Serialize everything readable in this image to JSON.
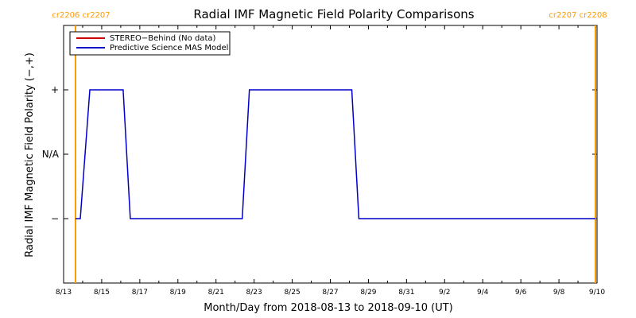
{
  "chart_data": {
    "type": "line",
    "title": "Radial IMF Magnetic Field Polarity Comparisons",
    "xlabel": "Month/Day from 2018-08-13 to 2018-09-10 (UT)",
    "ylabel": "Radial IMF Magnetic Field Polarity (−,+)",
    "x_start": "2018-08-13",
    "x_end": "2018-09-10",
    "x_ticks": [
      "8/13",
      "8/15",
      "8/17",
      "8/19",
      "8/21",
      "8/23",
      "8/25",
      "8/27",
      "8/29",
      "8/31",
      "9/2",
      "9/4",
      "9/6",
      "9/8",
      "9/10"
    ],
    "y_ticks": [
      {
        "label": "+",
        "value": 1
      },
      {
        "label": "N/A",
        "value": 0
      },
      {
        "label": "−",
        "value": -1
      }
    ],
    "ylim": [
      -2,
      2
    ],
    "carrington_markers": [
      {
        "label": "cr2206 cr2207",
        "x": "2018-08-13 15:00",
        "color": "#ff9900"
      },
      {
        "label": "cr2207 cr2208",
        "x": "2018-09-09 22:00",
        "color": "#ff9900"
      }
    ],
    "legend": {
      "placement": "top-left",
      "entries": [
        {
          "name": "STEREO−Behind (No data)",
          "color": "#cc0000"
        },
        {
          "name": "Predictive Science MAS Model",
          "color": "#0000cc"
        }
      ]
    },
    "series": [
      {
        "name": "Predictive Science MAS Model",
        "color": "#0000cc",
        "points": [
          [
            "2018-08-13 15:00",
            -1
          ],
          [
            "2018-08-13 21:00",
            -1
          ],
          [
            "2018-08-14 09:00",
            1
          ],
          [
            "2018-08-16 03:00",
            1
          ],
          [
            "2018-08-16 12:00",
            -1
          ],
          [
            "2018-08-22 09:00",
            -1
          ],
          [
            "2018-08-22 18:00",
            1
          ],
          [
            "2018-08-28 03:00",
            1
          ],
          [
            "2018-08-28 12:00",
            -1
          ],
          [
            "2018-09-09 22:00",
            -1
          ]
        ]
      }
    ]
  }
}
